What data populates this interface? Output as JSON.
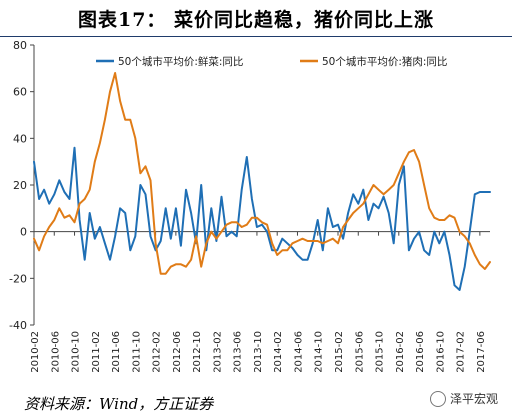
{
  "page": {
    "title": "图表17：  菜价同比趋稳，猪价同比上涨",
    "source": "资料来源：Wind，方正证券",
    "watermark": "泽平宏观"
  },
  "chart_data": {
    "type": "line",
    "title": "图表17：  菜价同比趋稳，猪价同比上涨",
    "xlabel": "",
    "ylabel": "",
    "ylim": [
      -40,
      80
    ],
    "yticks": [
      -40,
      -20,
      0,
      20,
      40,
      60,
      80
    ],
    "grid": false,
    "legend_position": "top",
    "x_tick_labels": [
      "2010-02",
      "2010-06",
      "2010-10",
      "2011-02",
      "2011-06",
      "2011-10",
      "2012-02",
      "2012-06",
      "2012-10",
      "2013-02",
      "2013-06",
      "2013-10",
      "2014-02",
      "2014-06",
      "2014-10",
      "2015-02",
      "2015-06",
      "2015-10",
      "2016-02",
      "2016-06",
      "2016-10",
      "2017-02",
      "2017-06"
    ],
    "x": [
      "2010-02",
      "2010-03",
      "2010-04",
      "2010-05",
      "2010-06",
      "2010-07",
      "2010-08",
      "2010-09",
      "2010-10",
      "2010-11",
      "2010-12",
      "2011-01",
      "2011-02",
      "2011-03",
      "2011-04",
      "2011-05",
      "2011-06",
      "2011-07",
      "2011-08",
      "2011-09",
      "2011-10",
      "2011-11",
      "2011-12",
      "2012-01",
      "2012-02",
      "2012-03",
      "2012-04",
      "2012-05",
      "2012-06",
      "2012-07",
      "2012-08",
      "2012-09",
      "2012-10",
      "2012-11",
      "2012-12",
      "2013-01",
      "2013-02",
      "2013-03",
      "2013-04",
      "2013-05",
      "2013-06",
      "2013-07",
      "2013-08",
      "2013-09",
      "2013-10",
      "2013-11",
      "2013-12",
      "2014-01",
      "2014-02",
      "2014-03",
      "2014-04",
      "2014-05",
      "2014-06",
      "2014-07",
      "2014-08",
      "2014-09",
      "2014-10",
      "2014-11",
      "2014-12",
      "2015-01",
      "2015-02",
      "2015-03",
      "2015-04",
      "2015-05",
      "2015-06",
      "2015-07",
      "2015-08",
      "2015-09",
      "2015-10",
      "2015-11",
      "2015-12",
      "2016-01",
      "2016-02",
      "2016-03",
      "2016-04",
      "2016-05",
      "2016-06",
      "2016-07",
      "2016-08",
      "2016-09",
      "2016-10",
      "2016-11",
      "2016-12",
      "2017-01",
      "2017-02",
      "2017-03",
      "2017-04",
      "2017-05",
      "2017-06",
      "2017-07",
      "2017-08"
    ],
    "series": [
      {
        "name": "50个城市平均价:鲜菜:同比",
        "color": "#1f6fb5",
        "values": [
          30,
          14,
          18,
          12,
          16,
          22,
          17,
          14,
          36,
          5,
          -12,
          8,
          -3,
          2,
          -5,
          -12,
          -2,
          10,
          8,
          -8,
          -2,
          20,
          16,
          -2,
          -8,
          -4,
          10,
          -3,
          10,
          -6,
          18,
          8,
          -5,
          20,
          -8,
          10,
          -4,
          15,
          -2,
          0,
          -2,
          18,
          32,
          14,
          2,
          3,
          0,
          -8,
          -8,
          -3,
          -5,
          -7,
          -10,
          -12,
          -12,
          -5,
          5,
          -8,
          10,
          2,
          3,
          -3,
          8,
          16,
          12,
          18,
          5,
          12,
          10,
          15,
          8,
          -5,
          20,
          28,
          -8,
          -3,
          0,
          -8,
          -10,
          0,
          -5,
          0,
          -10,
          -23,
          -25,
          -15,
          0,
          16,
          17,
          17,
          17
        ]
      },
      {
        "name": "50个城市平均价:猪肉:同比",
        "color": "#e07c17",
        "values": [
          -3,
          -8,
          -2,
          2,
          5,
          10,
          6,
          7,
          4,
          12,
          14,
          18,
          30,
          38,
          48,
          60,
          68,
          56,
          48,
          48,
          40,
          25,
          28,
          22,
          -5,
          -18,
          -18,
          -15,
          -14,
          -14,
          -15,
          -12,
          -2,
          -15,
          -5,
          0,
          -3,
          0,
          3,
          4,
          4,
          2,
          3,
          6,
          6,
          4,
          3,
          -5,
          -10,
          -8,
          -8,
          -5,
          -4,
          -3,
          -4,
          -4,
          -4,
          -5,
          -4,
          -3,
          -5,
          2,
          5,
          8,
          10,
          12,
          16,
          20,
          18,
          16,
          18,
          20,
          25,
          30,
          34,
          35,
          30,
          20,
          10,
          6,
          5,
          5,
          7,
          6,
          0,
          -2,
          -5,
          -10,
          -14,
          -16,
          -13
        ]
      }
    ]
  }
}
